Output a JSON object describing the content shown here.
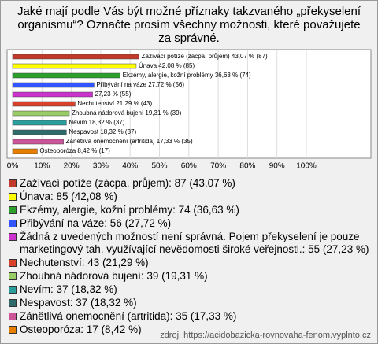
{
  "chart_data": {
    "type": "bar",
    "orientation": "horizontal",
    "title": "Jaké mají podle Vás být možné příznaky takzvaného „překyselení organismu“? Označte prosím všechny možnosti, které považujete za správné.",
    "categories": [
      "Zažívací potíže (zácpa, průjem): 87 (43,07 %)",
      "Únava: 85 (42,08 %)",
      "Ekzémy, alergie, kožní problémy: 74 (36,63 %)",
      "Přibývání na váze: 56 (27,72 %)",
      "Žádná z uvedených možností není správná. Pojem překyselení je pouze marketingový tah, využívající nevědomosti široké veřejnosti.: 55 (27,23 %)",
      "Nechutenství: 43 (21,29 %)",
      "Zhoubná nádorová bujení: 39 (19,31 %)",
      "Nevím: 37 (18,32 %)",
      "Nespavost: 37 (18,32 %)",
      "Zánětlivá onemocnění (artritida): 35 (17,33 %)",
      "Osteoporóza: 17 (8,42 %)"
    ],
    "values": [
      43.07,
      42.08,
      36.63,
      27.72,
      27.23,
      21.29,
      19.31,
      18.32,
      18.32,
      17.33,
      8.42
    ],
    "counts": [
      87,
      85,
      74,
      56,
      55,
      43,
      39,
      37,
      37,
      35,
      17
    ],
    "value_labels": [
      "Zažívací potíže (zácpa, průjem) 43,07 % (87)",
      "Únava 42,08 % (85)",
      "Ekzémy, alergie, kožní problémy 36,63 % (74)",
      "Přibývání na váze 27,72 % (56)",
      "27,23 % (55)",
      "Nechutenství 21,29 % (43)",
      "Zhoubná nádorová bujení 19,31 % (39)",
      "Nevím 18,32 % (37)",
      "Nespavost 18,32 % (37)",
      "Zánětlivá onemocnění (artritida) 17,33 % (35)",
      "Osteoporóza 8,42 % (17)"
    ],
    "colors": [
      "#c0392b",
      "#ffff00",
      "#2ca02c",
      "#3355ff",
      "#cc33cc",
      "#d9412b",
      "#99cc66",
      "#2a9d9d",
      "#2f6b6b",
      "#cc5599",
      "#e67e00"
    ],
    "xlim": [
      0,
      100
    ],
    "xticks": [
      {
        "value": 0,
        "label": "0%"
      },
      {
        "value": 10,
        "label": "10%"
      },
      {
        "value": 20,
        "label": "20%"
      },
      {
        "value": 30,
        "label": "30%"
      },
      {
        "value": 40,
        "label": "40%"
      },
      {
        "value": 50,
        "label": "50%"
      },
      {
        "value": 60,
        "label": "60%"
      },
      {
        "value": 70,
        "label": "70%"
      },
      {
        "value": 80,
        "label": "80%"
      },
      {
        "value": 90,
        "label": "90%"
      },
      {
        "value": 100,
        "label": "100%"
      }
    ],
    "grid": true,
    "source": "zdroj: https://acidobazicka-rovnovaha-fenom.vyplnto.cz"
  }
}
